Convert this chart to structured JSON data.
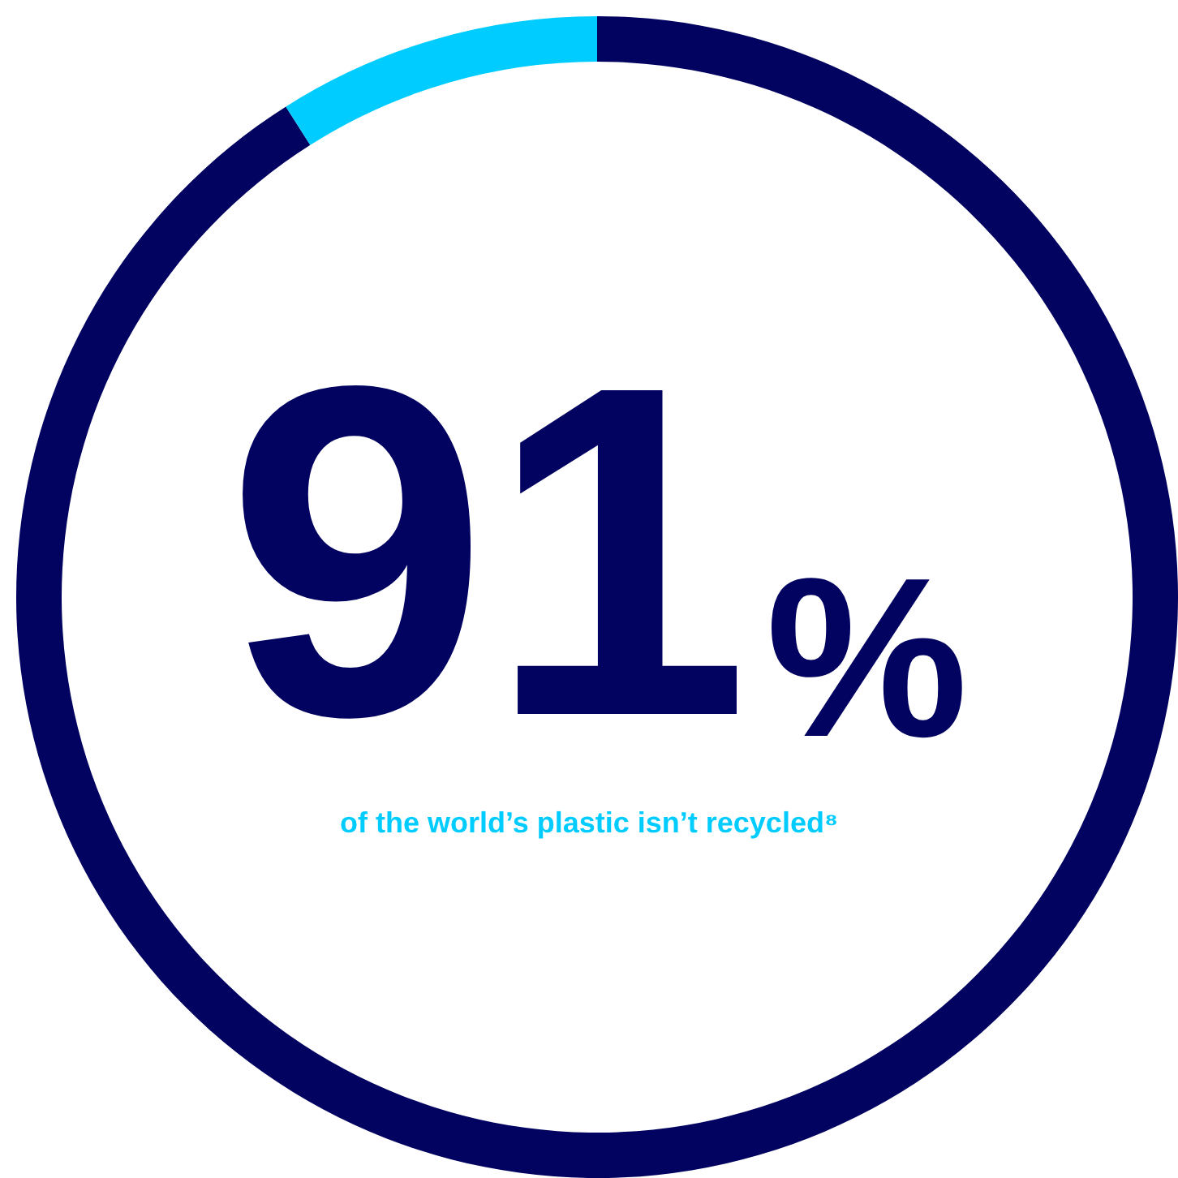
{
  "chart_data": {
    "type": "donut",
    "categories": [
      null,
      null
    ],
    "values": [
      91,
      9
    ],
    "colors": [
      "#020361",
      "#00ccff"
    ],
    "value_labels": [
      "91%",
      null
    ],
    "annotations": [
      "of the world’s plastic isn’t recycled⁸"
    ]
  }
}
